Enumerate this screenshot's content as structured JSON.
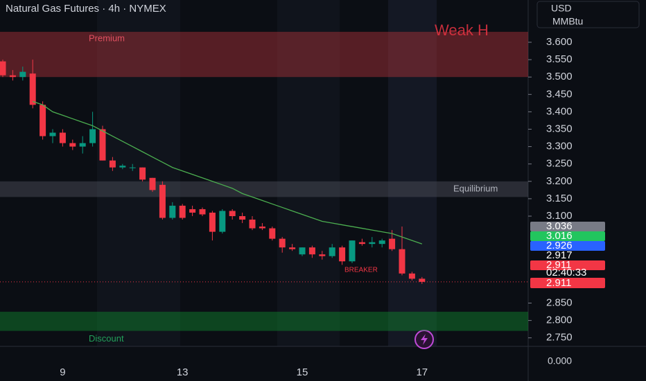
{
  "chart_data": {
    "type": "candlestick",
    "title": "Natural Gas Futures · 4h · NYMEX",
    "currency": "USD",
    "unit": "MMBtu",
    "categories": [
      null,
      null,
      null,
      null,
      null,
      null,
      "9",
      null,
      null,
      null,
      null,
      null,
      null,
      null,
      null,
      null,
      null,
      null,
      "13",
      null,
      null,
      null,
      null,
      null,
      null,
      null,
      null,
      null,
      null,
      null,
      "15",
      null,
      null,
      null,
      null,
      null,
      null,
      null,
      null,
      null,
      null,
      null,
      "17"
    ],
    "open": [
      3.545,
      3.505,
      3.5,
      3.51,
      3.42,
      3.33,
      3.34,
      3.31,
      3.3,
      3.31,
      3.35,
      3.26,
      3.24,
      3.24,
      3.24,
      3.21,
      3.19,
      3.095,
      3.13,
      3.12,
      3.12,
      3.11,
      3.055,
      3.115,
      3.1,
      3.09,
      3.07,
      3.065,
      3.035,
      3.01,
      2.99,
      3.01,
      2.99,
      2.985,
      3.01,
      2.97,
      3.025,
      3.02,
      3.02,
      3.035,
      3.005,
      2.935,
      2.92
    ],
    "high": [
      3.55,
      3.52,
      3.53,
      3.55,
      3.43,
      3.35,
      3.35,
      3.32,
      3.33,
      3.4,
      3.36,
      3.27,
      3.25,
      3.25,
      3.24,
      3.21,
      3.2,
      3.14,
      3.135,
      3.13,
      3.125,
      3.115,
      3.12,
      3.12,
      3.11,
      3.1,
      3.08,
      3.07,
      3.04,
      3.02,
      3.01,
      3.015,
      3.0,
      3.02,
      3.015,
      3.03,
      3.035,
      3.04,
      3.035,
      3.06,
      3.07,
      2.94,
      2.925
    ],
    "low": [
      3.5,
      3.49,
      3.49,
      3.41,
      3.32,
      3.31,
      3.3,
      3.29,
      3.28,
      3.3,
      3.26,
      3.23,
      3.235,
      3.23,
      3.2,
      3.17,
      3.09,
      3.09,
      3.09,
      3.1,
      3.1,
      3.03,
      3.05,
      3.09,
      3.08,
      3.06,
      3.06,
      3.03,
      2.995,
      3.0,
      2.985,
      2.98,
      2.975,
      2.98,
      2.96,
      2.965,
      3.015,
      3.01,
      3.01,
      3.0,
      2.93,
      2.915,
      2.905
    ],
    "close": [
      3.505,
      3.5,
      3.515,
      3.42,
      3.33,
      3.34,
      3.31,
      3.3,
      3.31,
      3.35,
      3.26,
      3.24,
      3.245,
      3.24,
      3.205,
      3.175,
      3.095,
      3.13,
      3.095,
      3.11,
      3.105,
      3.055,
      3.115,
      3.1,
      3.09,
      3.065,
      3.065,
      3.035,
      3.01,
      3.005,
      3.01,
      2.99,
      2.985,
      3.01,
      2.97,
      3.03,
      3.02,
      3.025,
      3.03,
      3.005,
      2.935,
      2.92,
      2.911
    ],
    "up_color": "#089981",
    "down_color": "#f23645",
    "moving_average": {
      "color": "#4caf50",
      "values": [
        null,
        null,
        null,
        3.43,
        3.42,
        3.4,
        3.39,
        3.38,
        3.37,
        3.36,
        3.345,
        3.33,
        3.315,
        3.3,
        3.285,
        3.27,
        3.255,
        3.24,
        3.23,
        3.22,
        3.21,
        3.2,
        3.19,
        3.18,
        3.165,
        3.155,
        3.145,
        3.135,
        3.125,
        3.115,
        3.105,
        3.095,
        3.085,
        3.08,
        3.075,
        3.07,
        3.065,
        3.06,
        3.055,
        3.05,
        3.04,
        3.03,
        3.02
      ]
    },
    "zones": [
      {
        "label": "Premium",
        "top": 3.63,
        "bottom": 3.5,
        "color": "#b2323a"
      },
      {
        "label": "Equilibrium",
        "top": 3.2,
        "bottom": 3.155,
        "color": "#50535e"
      },
      {
        "label": "Discount",
        "top": 2.825,
        "bottom": 2.77,
        "color": "#0f8a2e"
      }
    ],
    "annotations": [
      "Weak H",
      "BREAKER"
    ],
    "ylim": [
      2.7255,
      3.7215
    ],
    "yticks": [
      {
        "value": 3.6,
        "label": "3.600"
      },
      {
        "value": 3.55,
        "label": "3.550"
      },
      {
        "value": 3.5,
        "label": "3.500"
      },
      {
        "value": 3.45,
        "label": "3.450"
      },
      {
        "value": 3.4,
        "label": "3.400"
      },
      {
        "value": 3.35,
        "label": "3.350"
      },
      {
        "value": 3.3,
        "label": "3.300"
      },
      {
        "value": 3.25,
        "label": "3.250"
      },
      {
        "value": 3.2,
        "label": "3.200"
      },
      {
        "value": 3.15,
        "label": "3.150"
      },
      {
        "value": 3.1,
        "label": "3.100"
      },
      {
        "value": 2.85,
        "label": "2.850"
      },
      {
        "value": 2.8,
        "label": "2.800"
      },
      {
        "value": 2.75,
        "label": "2.750"
      }
    ],
    "volume_scale_label": "0.000",
    "price_labels": [
      {
        "value": 3.036,
        "color": "#787b86"
      },
      {
        "value": 3.016,
        "color": "#22c55e"
      },
      {
        "value": 2.926,
        "color": "#2962ff"
      },
      {
        "value": 2.917,
        "color": "#0b0e14"
      },
      {
        "value": 2.911,
        "color": "#f23645"
      }
    ],
    "countdown": "02:40:33",
    "last_price": 2.911
  }
}
